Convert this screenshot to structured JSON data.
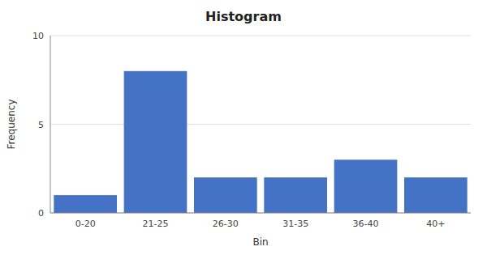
{
  "chart_data": {
    "type": "bar",
    "title": "Histogram",
    "xlabel": "Bin",
    "ylabel": "Frequency",
    "categories": [
      "0-20",
      "21-25",
      "26-30",
      "31-35",
      "36-40",
      "40+"
    ],
    "values": [
      1,
      8,
      2,
      2,
      3,
      2
    ],
    "color": "#4472C4",
    "ylim": [
      0,
      10
    ],
    "yticks": [
      0,
      5,
      10
    ],
    "grid": true
  }
}
